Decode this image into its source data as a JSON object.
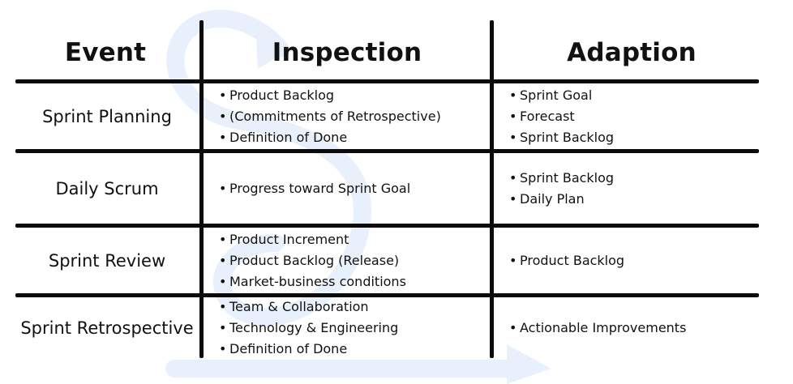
{
  "headers": {
    "event": "Event",
    "inspection": "Inspection",
    "adaption": "Adaption"
  },
  "rows": [
    {
      "event": "Sprint Planning",
      "inspection": [
        "Product Backlog",
        "(Commitments of Retrospective)",
        "Definition of Done"
      ],
      "adaption": [
        "Sprint Goal",
        "Forecast",
        "Sprint Backlog"
      ]
    },
    {
      "event": "Daily Scrum",
      "inspection": [
        "Progress toward Sprint Goal"
      ],
      "adaption": [
        "Sprint Backlog",
        "Daily Plan"
      ]
    },
    {
      "event": "Sprint Review",
      "inspection": [
        "Product Increment",
        "Product Backlog (Release)",
        "Market-business conditions"
      ],
      "adaption": [
        "Product Backlog"
      ]
    },
    {
      "event": "Sprint Retrospective",
      "inspection": [
        "Team & Collaboration",
        "Technology & Engineering",
        "Definition of Done"
      ],
      "adaption": [
        "Actionable Improvements"
      ]
    }
  ],
  "colors": {
    "grid": "#0b0b0b",
    "text": "#111111",
    "background_arrow": "#e8f1fb"
  },
  "icons": {
    "background": "cycle-arrow-icon"
  }
}
